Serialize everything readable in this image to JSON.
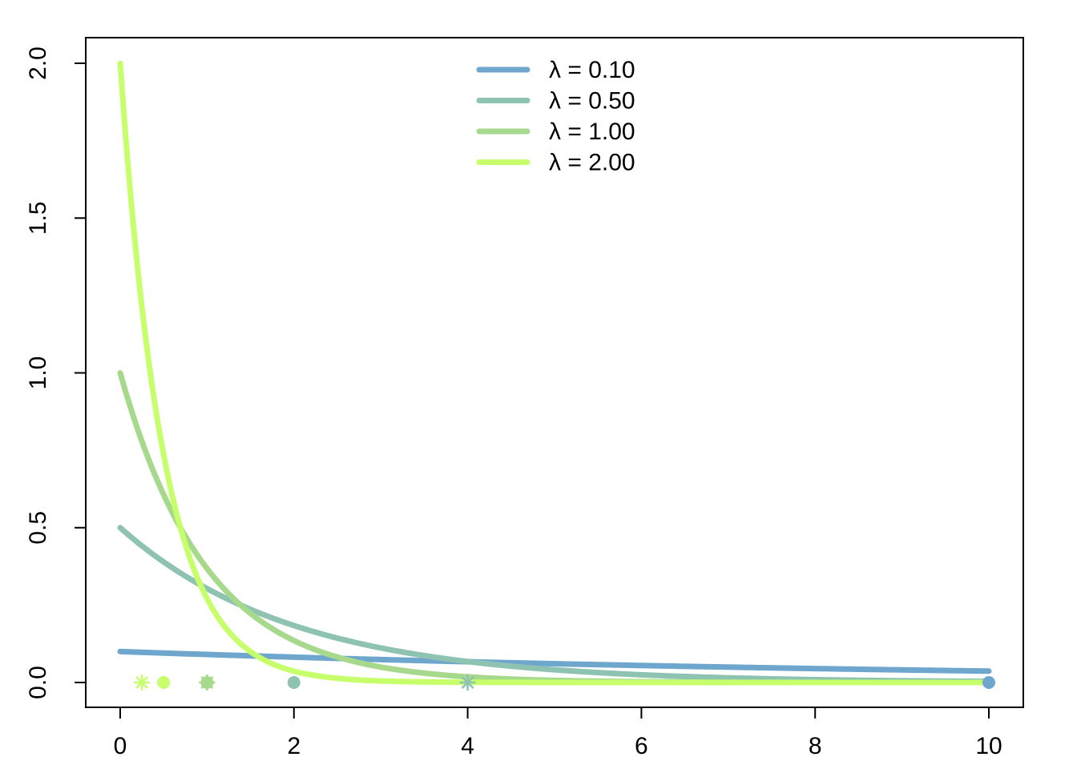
{
  "chart_data": {
    "type": "line",
    "title": "",
    "xlabel": "",
    "ylabel": "",
    "xlim": [
      0,
      10
    ],
    "ylim": [
      0,
      2
    ],
    "x_ticks": [
      0,
      2,
      4,
      6,
      8,
      10
    ],
    "y_ticks": [
      0.0,
      0.5,
      1.0,
      1.5,
      2.0
    ],
    "x_tick_labels": [
      "0",
      "2",
      "4",
      "6",
      "8",
      "10"
    ],
    "y_tick_labels": [
      "0.0",
      "0.5",
      "1.0",
      "1.5",
      "2.0"
    ],
    "grid": false,
    "legend_position": "top-center",
    "series": [
      {
        "name": "λ = 0.10",
        "lambda": 0.1,
        "color": "#6ea6cd",
        "function": "lambda * exp(-lambda * x)",
        "x_range": [
          0,
          10
        ],
        "points": [
          {
            "x": 0,
            "y": 0.1
          },
          {
            "x": 2,
            "y": 0.0819
          },
          {
            "x": 4,
            "y": 0.067
          },
          {
            "x": 6,
            "y": 0.0549
          },
          {
            "x": 8,
            "y": 0.0449
          },
          {
            "x": 10,
            "y": 0.0368
          }
        ],
        "markers": [
          {
            "x": 10,
            "y": 0,
            "shape": "circle"
          }
        ]
      },
      {
        "name": "λ = 0.50",
        "lambda": 0.5,
        "color": "#8dc3b0",
        "function": "lambda * exp(-lambda * x)",
        "x_range": [
          0,
          10
        ],
        "points": [
          {
            "x": 0,
            "y": 0.5
          },
          {
            "x": 1,
            "y": 0.3033
          },
          {
            "x": 2,
            "y": 0.1839
          },
          {
            "x": 4,
            "y": 0.0677
          },
          {
            "x": 6,
            "y": 0.0249
          },
          {
            "x": 10,
            "y": 0.0034
          }
        ],
        "markers": [
          {
            "x": 2,
            "y": 0,
            "shape": "circle"
          },
          {
            "x": 4,
            "y": 0,
            "shape": "star"
          }
        ]
      },
      {
        "name": "λ = 1.00",
        "lambda": 1.0,
        "color": "#a6d98c",
        "function": "lambda * exp(-lambda * x)",
        "x_range": [
          0,
          10
        ],
        "points": [
          {
            "x": 0,
            "y": 1.0
          },
          {
            "x": 0.5,
            "y": 0.6065
          },
          {
            "x": 1,
            "y": 0.3679
          },
          {
            "x": 2,
            "y": 0.1353
          },
          {
            "x": 4,
            "y": 0.0183
          },
          {
            "x": 10,
            "y": 0.0
          }
        ],
        "markers": [
          {
            "x": 1,
            "y": 0,
            "shape": "circle"
          },
          {
            "x": 1,
            "y": 0,
            "shape": "star"
          }
        ]
      },
      {
        "name": "λ = 2.00",
        "lambda": 2.0,
        "color": "#c6ff6b",
        "function": "lambda * exp(-lambda * x)",
        "x_range": [
          0,
          10
        ],
        "points": [
          {
            "x": 0,
            "y": 2.0
          },
          {
            "x": 0.25,
            "y": 1.2131
          },
          {
            "x": 0.5,
            "y": 0.7358
          },
          {
            "x": 1,
            "y": 0.2707
          },
          {
            "x": 2,
            "y": 0.0366
          },
          {
            "x": 10,
            "y": 0.0
          }
        ],
        "markers": [
          {
            "x": 0.25,
            "y": 0,
            "shape": "star"
          },
          {
            "x": 0.5,
            "y": 0,
            "shape": "circle"
          }
        ]
      }
    ]
  }
}
